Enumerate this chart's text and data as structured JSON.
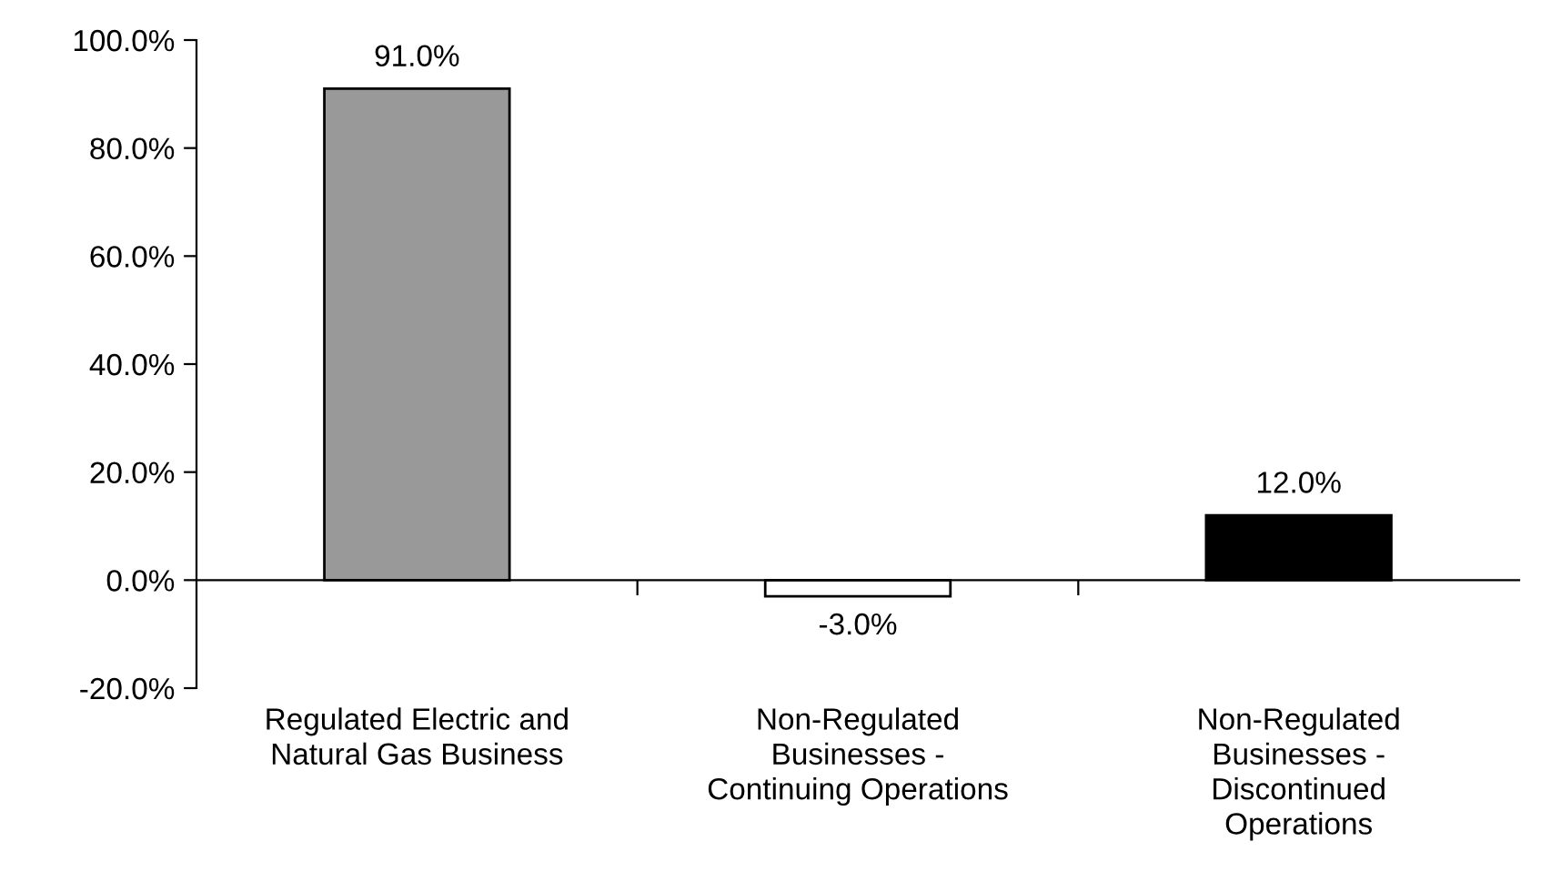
{
  "chart_data": {
    "type": "bar",
    "categories": [
      "Regulated Electric and\nNatural Gas Business",
      "Non-Regulated\nBusinesses -\nContinuing Operations",
      "Non-Regulated\nBusinesses -\nDiscontinued\nOperations"
    ],
    "values": [
      91.0,
      -3.0,
      12.0
    ],
    "colors": [
      "#999999",
      "#ffffff",
      "#000000"
    ],
    "value_labels": [
      "91.0%",
      "-3.0%",
      "12.0%"
    ],
    "ylim": [
      -20,
      100
    ],
    "yticks": [
      {
        "value": -20,
        "label": "-20.0%"
      },
      {
        "value": 0,
        "label": "0.0%"
      },
      {
        "value": 20,
        "label": "20.0%"
      },
      {
        "value": 40,
        "label": "40.0%"
      },
      {
        "value": 60,
        "label": "60.0%"
      },
      {
        "value": 80,
        "label": "80.0%"
      },
      {
        "value": 100,
        "label": "100.0%"
      }
    ],
    "legend": false
  }
}
